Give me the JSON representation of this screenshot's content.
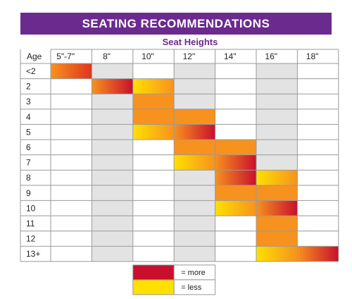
{
  "chart_data": {
    "type": "heatmap",
    "title": "SEATING RECOMMENDATIONS",
    "subtitle": "Seat Heights",
    "row_header": "Age",
    "columns": [
      "5\"-7\"",
      "8\"",
      "10\"",
      "12\"",
      "14\"",
      "16\"",
      "18\""
    ],
    "rows": [
      "<2",
      "2",
      "3",
      "4",
      "5",
      "6",
      "7",
      "8",
      "9",
      "10",
      "11",
      "12",
      "13+"
    ],
    "cells": [
      {
        "row": "<2",
        "col": "5\"-7\"",
        "level": "medium-high"
      },
      {
        "row": "2",
        "col": "8\"",
        "level": "more"
      },
      {
        "row": "2",
        "col": "10\"",
        "level": "less"
      },
      {
        "row": "3",
        "col": "10\"",
        "level": "medium"
      },
      {
        "row": "4",
        "col": "10\"",
        "level": "medium"
      },
      {
        "row": "4",
        "col": "12\"",
        "level": "medium"
      },
      {
        "row": "5",
        "col": "10\"",
        "level": "less"
      },
      {
        "row": "5",
        "col": "12\"",
        "level": "more"
      },
      {
        "row": "6",
        "col": "12\"",
        "level": "medium"
      },
      {
        "row": "6",
        "col": "14\"",
        "level": "medium"
      },
      {
        "row": "7",
        "col": "12\"",
        "level": "less"
      },
      {
        "row": "7",
        "col": "14\"",
        "level": "more"
      },
      {
        "row": "8",
        "col": "14\"",
        "level": "more"
      },
      {
        "row": "8",
        "col": "16\"",
        "level": "less"
      },
      {
        "row": "9",
        "col": "14\"",
        "level": "medium"
      },
      {
        "row": "9",
        "col": "16\"",
        "level": "medium"
      },
      {
        "row": "10",
        "col": "14\"",
        "level": "less"
      },
      {
        "row": "10",
        "col": "16\"",
        "level": "more"
      },
      {
        "row": "11",
        "col": "16\"",
        "level": "medium"
      },
      {
        "row": "12",
        "col": "16\"",
        "level": "medium"
      },
      {
        "row": "13+",
        "col": "16\"",
        "level": "less"
      },
      {
        "row": "13+",
        "col": "18\"",
        "level": "more"
      }
    ],
    "legend": [
      {
        "label": "= more",
        "level": "more"
      },
      {
        "label": "= less",
        "level": "less"
      }
    ],
    "colors": {
      "title_bg": "#6b2a8e",
      "subtitle": "#6b2a8e",
      "more": "#c8102e",
      "less": "#ffe000",
      "medium": "#f7921e",
      "grid_line": "#9a9a9a",
      "cell_shade": "#e3e3e3"
    }
  }
}
